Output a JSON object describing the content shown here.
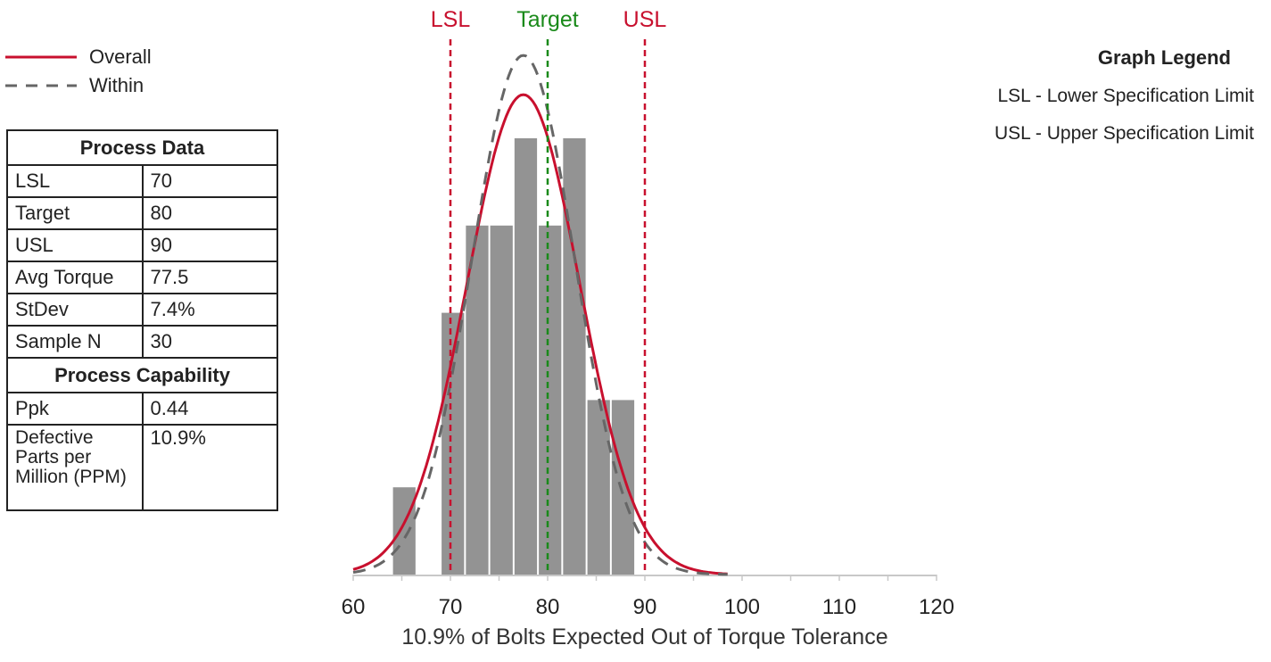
{
  "legend": {
    "overall": "Overall",
    "within": "Within"
  },
  "process_table": {
    "header": "Process Data",
    "rows": [
      {
        "label": "LSL",
        "value": "70"
      },
      {
        "label": "Target",
        "value": "80"
      },
      {
        "label": "USL",
        "value": "90"
      },
      {
        "label": "Avg Torque",
        "value": "77.5"
      },
      {
        "label": "StDev",
        "value": "7.4%"
      },
      {
        "label": "Sample N",
        "value": "30"
      }
    ],
    "capability_header": "Process Capability",
    "capability_rows": [
      {
        "label": "Ppk",
        "value": "0.44"
      },
      {
        "label": "Defective Parts per Million (PPM)",
        "value": "10.9%"
      }
    ]
  },
  "graph_legend": {
    "title": "Graph Legend",
    "items": [
      "LSL - Lower Specification Limit",
      "USL - Upper Specification Limit"
    ]
  },
  "chart_data": {
    "type": "bar",
    "xlabel": "10.9% of Bolts Expected Out of Torque Tolerance",
    "xlim": [
      60,
      120
    ],
    "ylim": [
      0,
      5
    ],
    "x_ticks": [
      60,
      70,
      80,
      90,
      100,
      110,
      120
    ],
    "bins": [
      {
        "x0": 64,
        "x1": 66.5,
        "count": 1
      },
      {
        "x0": 69,
        "x1": 71.5,
        "count": 3
      },
      {
        "x0": 71.5,
        "x1": 74,
        "count": 4
      },
      {
        "x0": 74,
        "x1": 76.5,
        "count": 4
      },
      {
        "x0": 76.5,
        "x1": 79,
        "count": 5
      },
      {
        "x0": 79,
        "x1": 81.5,
        "count": 4
      },
      {
        "x0": 81.5,
        "x1": 84,
        "count": 5
      },
      {
        "x0": 84,
        "x1": 86.5,
        "count": 2
      },
      {
        "x0": 86.5,
        "x1": 89,
        "count": 2
      }
    ],
    "spec_lines": [
      {
        "label": "LSL",
        "value": 70,
        "color": "#c8102e"
      },
      {
        "label": "Target",
        "value": 80,
        "color": "#1a8a1a"
      },
      {
        "label": "USL",
        "value": 90,
        "color": "#c8102e"
      }
    ],
    "series": [
      {
        "name": "Overall",
        "mean": 77.5,
        "sd": 5.8,
        "peak": 5.5,
        "color": "#c8102e",
        "style": "solid"
      },
      {
        "name": "Within",
        "mean": 77.5,
        "sd": 5.3,
        "peak": 5.95,
        "color": "#666666",
        "style": "dashed"
      }
    ],
    "bar_color": "#939393"
  }
}
